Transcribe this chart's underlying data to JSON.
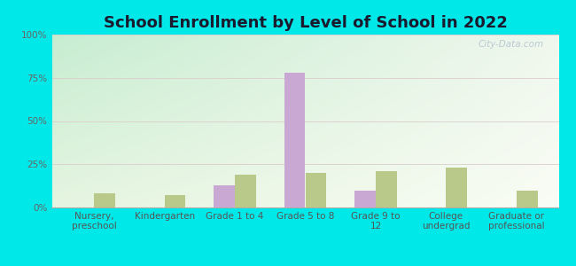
{
  "title": "School Enrollment by Level of School in 2022",
  "categories": [
    "Nursery,\npreschool",
    "Kindergarten",
    "Grade 1 to 4",
    "Grade 5 to 8",
    "Grade 9 to\n12",
    "College\nundergrad",
    "Graduate or\nprofessional"
  ],
  "zip_values": [
    0.0,
    0.0,
    13.0,
    78.0,
    10.0,
    0.0,
    0.0
  ],
  "ny_values": [
    8.0,
    7.0,
    19.0,
    20.0,
    21.0,
    23.0,
    10.0
  ],
  "zip_color": "#c9a8d4",
  "ny_color": "#b8c98a",
  "background_outer": "#00e8e8",
  "ylim": [
    0,
    100
  ],
  "yticks": [
    0,
    25,
    50,
    75,
    100
  ],
  "ytick_labels": [
    "0%",
    "25%",
    "50%",
    "75%",
    "100%"
  ],
  "watermark": "City-Data.com",
  "title_fontsize": 13,
  "tick_fontsize": 7.5,
  "legend_fontsize": 9,
  "bar_width": 0.3
}
